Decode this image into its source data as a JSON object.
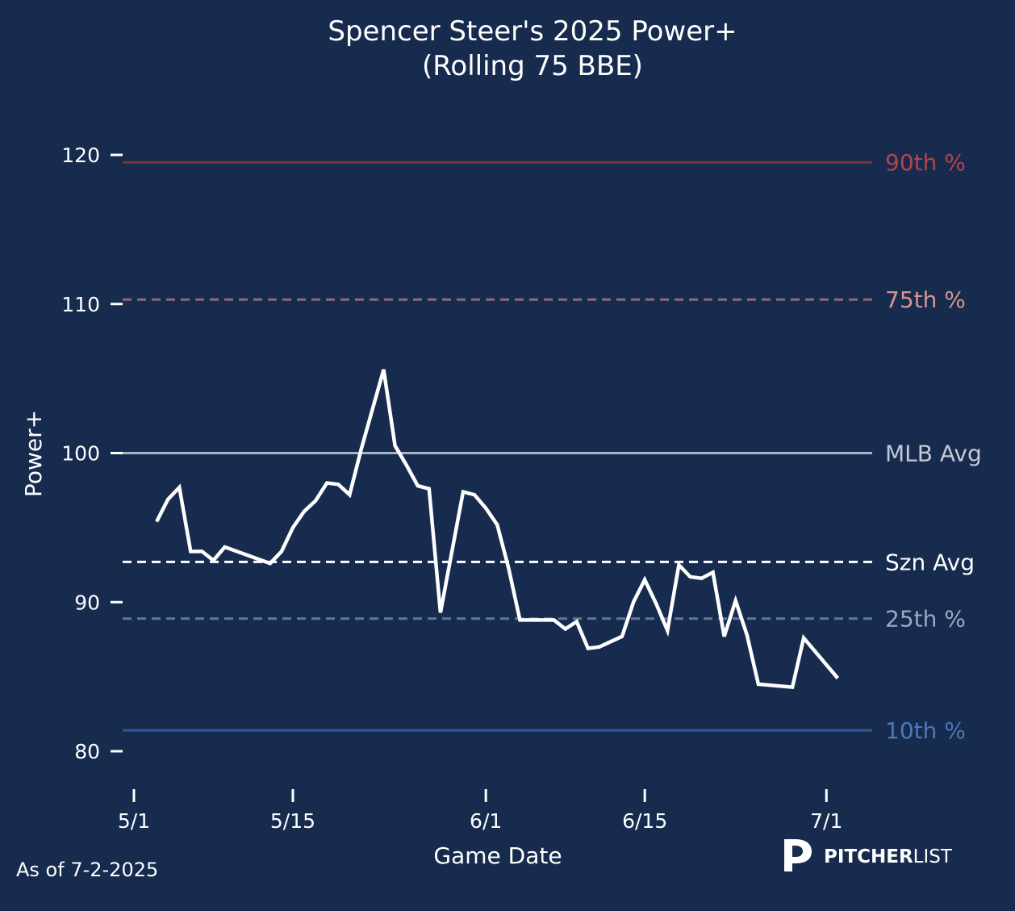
{
  "chart_data": {
    "type": "line",
    "title": "Spencer Steer's 2025 Power+",
    "subtitle": "(Rolling 75 BBE)",
    "xlabel": "Game Date",
    "ylabel": "Power+",
    "ylim": [
      78,
      124
    ],
    "yticks": [
      80,
      90,
      100,
      110,
      120
    ],
    "xticks": [
      "5/1",
      "5/15",
      "6/1",
      "6/15",
      "7/1"
    ],
    "grid": false,
    "series": [
      {
        "name": "Power+",
        "color": "#ffffff",
        "x": [
          "5/3",
          "5/4",
          "5/5",
          "5/6",
          "5/7",
          "5/8",
          "5/9",
          "5/13",
          "5/14",
          "5/15",
          "5/16",
          "5/17",
          "5/18",
          "5/19",
          "5/20",
          "5/21",
          "5/23",
          "5/24",
          "5/25",
          "5/26",
          "5/27",
          "5/28",
          "5/30",
          "5/31",
          "6/1",
          "6/2",
          "6/3",
          "6/4",
          "6/7",
          "6/8",
          "6/9",
          "6/10",
          "6/11",
          "6/13",
          "6/14",
          "6/15",
          "6/16",
          "6/17",
          "6/18",
          "6/19",
          "6/20",
          "6/21",
          "6/22",
          "6/23",
          "6/24",
          "6/25",
          "6/28",
          "6/29",
          "7/2"
        ],
        "values": [
          95.4,
          96.9,
          97.7,
          93.4,
          93.4,
          92.8,
          93.7,
          92.6,
          93.4,
          95.0,
          96.1,
          96.8,
          98.0,
          97.9,
          97.2,
          100.2,
          105.6,
          100.5,
          99.2,
          97.8,
          97.6,
          89.3,
          97.4,
          97.2,
          96.3,
          95.2,
          92.3,
          88.8,
          88.8,
          88.2,
          88.7,
          86.9,
          87.0,
          87.7,
          90.0,
          91.5,
          89.9,
          88.1,
          92.5,
          91.7,
          91.6,
          92.0,
          87.7,
          90.1,
          87.8,
          84.5,
          84.3,
          87.6,
          84.9
        ]
      }
    ],
    "reference_lines": [
      {
        "label": "90th %",
        "value": 119.5,
        "color": "#7a3540",
        "label_color": "#b8434a",
        "dashed": false
      },
      {
        "label": "75th %",
        "value": 110.3,
        "color": "#8a6a7c",
        "label_color": "#d9948f",
        "dashed": true
      },
      {
        "label": "MLB Avg",
        "value": 100,
        "color": "#a9b3c4",
        "label_color": "#c4c9d4",
        "dashed": false
      },
      {
        "label": "Szn Avg",
        "value": 92.7,
        "color": "#ffffff",
        "label_color": "#ffffff",
        "dashed": true
      },
      {
        "label": "25th %",
        "value": 88.9,
        "color": "#5f7699",
        "label_color": "#9aaac4",
        "dashed": true
      },
      {
        "label": "10th %",
        "value": 81.4,
        "color": "#2f5a9a",
        "label_color": "#4f78b5",
        "dashed": false
      }
    ]
  },
  "footer": {
    "as_of": "As of 7-2-2025",
    "logo_bold": "PITCHER",
    "logo_light": "LIST"
  },
  "colors": {
    "background": "#172b4f",
    "text": "#ffffff"
  }
}
